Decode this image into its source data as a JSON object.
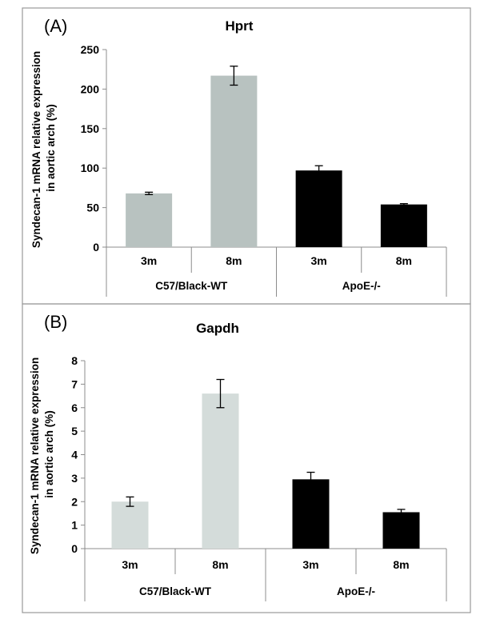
{
  "chart_data": [
    {
      "type": "bar",
      "panel_label": "(A)",
      "title": "Hprt",
      "ylabel": [
        "Syndecan-1 mRNA relative expression",
        "in aortic arch (%)"
      ],
      "ylim": [
        0,
        250
      ],
      "yticks": [
        0,
        50,
        100,
        150,
        200,
        250
      ],
      "categories": [
        "3m",
        "8m",
        "3m",
        "8m"
      ],
      "groups": [
        {
          "name": "C57/Black-WT",
          "categories": [
            "3m",
            "8m"
          ]
        },
        {
          "name": "ApoE-/-",
          "categories": [
            "3m",
            "8m"
          ]
        }
      ],
      "values": [
        68,
        217,
        97,
        54
      ],
      "errors": [
        1.5,
        12,
        6,
        1
      ],
      "bar_colors": [
        "#b8c2c0",
        "#b8c2c0",
        "#000000",
        "#000000"
      ],
      "grid": false
    },
    {
      "type": "bar",
      "panel_label": "(B)",
      "title": "Gapdh",
      "ylabel": [
        "Syndecan-1 mRNA relative expression",
        "in aortic arch (%)"
      ],
      "ylim": [
        0,
        8
      ],
      "yticks": [
        0,
        1,
        2,
        3,
        4,
        5,
        6,
        7,
        8
      ],
      "categories": [
        "3m",
        "8m",
        "3m",
        "8m"
      ],
      "groups": [
        {
          "name": "C57/Black-WT",
          "categories": [
            "3m",
            "8m"
          ]
        },
        {
          "name": "ApoE-/-",
          "categories": [
            "3m",
            "8m"
          ]
        }
      ],
      "values": [
        2.0,
        6.6,
        2.95,
        1.55
      ],
      "errors": [
        0.2,
        0.6,
        0.3,
        0.12
      ],
      "bar_colors": [
        "#d4dcda",
        "#d4dcda",
        "#000000",
        "#000000"
      ],
      "grid": false
    }
  ]
}
